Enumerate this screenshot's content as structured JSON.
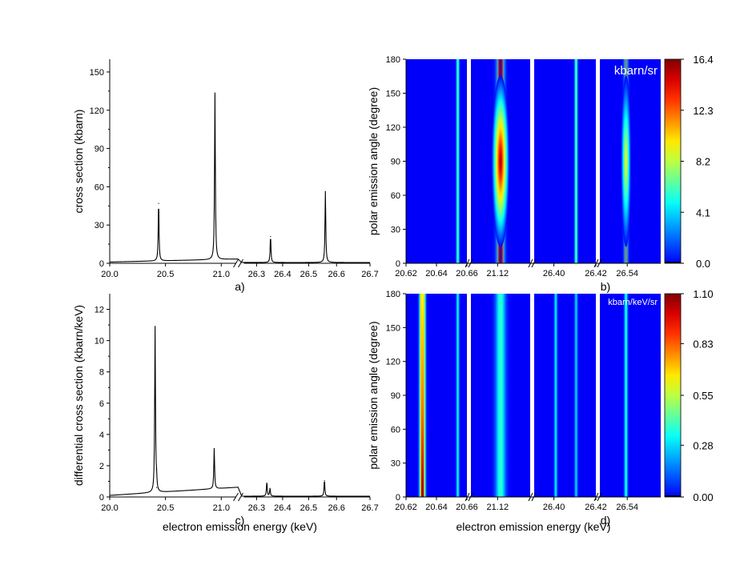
{
  "chart_data": [
    {
      "id": "a",
      "type": "line",
      "panel_label": "a)",
      "ylabel": "cross section (kbarn)",
      "xlabel": "",
      "ylim": [
        0,
        160
      ],
      "yticks": [
        "0",
        "30",
        "60",
        "90",
        "120",
        "150"
      ],
      "ytick_values": [
        0,
        30,
        60,
        90,
        120,
        150
      ],
      "xticks": [
        "20.0",
        "20.5",
        "21.0",
        "26.3",
        "26.4",
        "26.5",
        "26.6",
        "26.7"
      ],
      "axis_break_after_x": "21.0",
      "baseline": {
        "start": 1.0,
        "end": 0.6
      },
      "peaks": [
        {
          "x_pos": 2.63,
          "y": 47
        },
        {
          "x_pos": 5.66,
          "y": 131
        },
        {
          "x_pos": 8.65,
          "y": 21
        },
        {
          "x_pos": 11.6,
          "y": 56
        }
      ]
    },
    {
      "id": "c",
      "type": "line",
      "panel_label": "c)",
      "ylabel": "differential cross section (kbarn/keV)",
      "xlabel": "electron emission energy (keV)",
      "ylim": [
        0,
        13
      ],
      "yticks": [
        "0",
        "2",
        "4",
        "6",
        "8",
        "10",
        "12"
      ],
      "ytick_values": [
        0,
        2,
        4,
        6,
        8,
        10,
        12
      ],
      "xticks": [
        "20.0",
        "20.5",
        "21.0",
        "26.3",
        "26.4",
        "26.5",
        "26.6",
        "26.7"
      ],
      "axis_break_after_x": "21.0",
      "baseline": {
        "start": 0.1,
        "end": 0.05
      },
      "peaks": [
        {
          "x_pos": 2.44,
          "y": 10.6
        },
        {
          "x_pos": 2.52,
          "y": 0.6
        },
        {
          "x_pos": 5.62,
          "y": 2.6
        },
        {
          "x_pos": 8.45,
          "y": 0.9
        },
        {
          "x_pos": 8.62,
          "y": 0.5
        },
        {
          "x_pos": 11.55,
          "y": 1.05
        }
      ]
    },
    {
      "id": "b",
      "type": "heatmap",
      "panel_label": "b)",
      "ylabel": "polar emission angle (degree)",
      "xlabel": "",
      "ylim": [
        0,
        180
      ],
      "yticks": [
        "0",
        "30",
        "60",
        "90",
        "120",
        "150",
        "180"
      ],
      "ytick_values": [
        0,
        30,
        60,
        90,
        120,
        150,
        180
      ],
      "segments": [
        {
          "ticks": [
            "20.62",
            "20.64",
            "20.66"
          ],
          "stripes": [
            {
              "pos": 0.85,
              "width": 0.035,
              "intensity": 0.38,
              "profile": "flat"
            }
          ]
        },
        {
          "ticks": [
            "21.12"
          ],
          "stripes": [
            {
              "pos": 0.5,
              "width": 0.09,
              "intensity": 1.0,
              "profile": "peak90"
            }
          ]
        },
        {
          "ticks": [
            "26.40",
            "26.42"
          ],
          "stripes": [
            {
              "pos": 0.68,
              "width": 0.035,
              "intensity": 0.4,
              "profile": "flat"
            }
          ]
        },
        {
          "ticks": [
            "26.54"
          ],
          "stripes": [
            {
              "pos": 0.43,
              "width": 0.05,
              "intensity": 0.6,
              "profile": "peak90"
            }
          ]
        }
      ],
      "colorbar": {
        "unit": "kbarn/sr",
        "ticks": [
          "0.0",
          "4.1",
          "8.2",
          "12.3",
          "16.4"
        ],
        "tick_values": [
          0,
          4.1,
          8.2,
          12.3,
          16.4
        ],
        "max": 16.4
      }
    },
    {
      "id": "d",
      "type": "heatmap",
      "panel_label": "d)",
      "ylabel": "polar emission angle (degree)",
      "xlabel": "electron emission energy (keV)",
      "ylim": [
        0,
        180
      ],
      "yticks": [
        "0",
        "30",
        "60",
        "90",
        "120",
        "150",
        "180"
      ],
      "ytick_values": [
        0,
        30,
        60,
        90,
        120,
        150,
        180
      ],
      "segments": [
        {
          "ticks": [
            "20.62",
            "20.64",
            "20.66"
          ],
          "stripes": [
            {
              "pos": 0.27,
              "width": 0.06,
              "intensity": 1.0,
              "profile": "risingZero"
            },
            {
              "pos": 0.85,
              "width": 0.035,
              "intensity": 0.3,
              "profile": "flat"
            }
          ]
        },
        {
          "ticks": [
            "21.12"
          ],
          "stripes": [
            {
              "pos": 0.5,
              "width": 0.12,
              "intensity": 0.35,
              "profile": "flat"
            }
          ]
        },
        {
          "ticks": [
            "26.40",
            "26.42"
          ],
          "stripes": [
            {
              "pos": 0.35,
              "width": 0.035,
              "intensity": 0.28,
              "profile": "flat"
            },
            {
              "pos": 0.68,
              "width": 0.035,
              "intensity": 0.25,
              "profile": "flat"
            }
          ]
        },
        {
          "ticks": [
            "26.54"
          ],
          "stripes": [
            {
              "pos": 0.43,
              "width": 0.04,
              "intensity": 0.33,
              "profile": "flat"
            }
          ]
        }
      ],
      "colorbar": {
        "unit": "kbarn/keV/sr",
        "ticks": [
          "0.00",
          "0.28",
          "0.55",
          "0.83",
          "1.10"
        ],
        "tick_values": [
          0,
          0.28,
          0.55,
          0.83,
          1.1
        ],
        "max": 1.1
      }
    }
  ]
}
